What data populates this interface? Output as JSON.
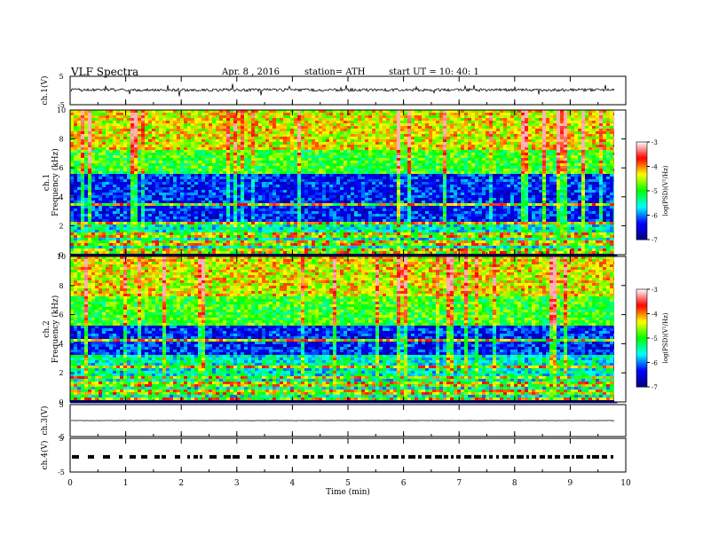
{
  "header": {
    "title": "VLF  Spectra",
    "date": "Apr. 8  , 2016",
    "station": "station= ATH",
    "start": "start  UT  =    10: 40: 1"
  },
  "chart_data": {
    "type": "heatmap",
    "xlabel": "Time  (min)",
    "xlim": [
      0,
      10
    ],
    "xticks": [
      "0",
      "1",
      "2",
      "3",
      "4",
      "5",
      "6",
      "7",
      "8",
      "9",
      "10"
    ],
    "panels": [
      {
        "id": "ch1v",
        "kind": "line",
        "ylabel": "ch.1(V)",
        "ylim": [
          -5,
          5
        ],
        "yticks": [
          "5",
          "-5"
        ],
        "baseline": 0.2,
        "noise": 0.5
      },
      {
        "id": "ch1s",
        "kind": "spectrogram",
        "ylabel1": "ch.1",
        "ylabel2": "Frequency  (kHz)",
        "ylim": [
          0,
          10
        ],
        "yticks": [
          "0",
          "2",
          "4",
          "6",
          "8",
          "10"
        ],
        "quiet_band_khz": [
          2.2,
          5.6
        ],
        "strong_lines_khz": [
          0.2,
          0.45,
          0.75,
          1.05,
          1.35,
          1.6,
          2.3,
          3.5
        ]
      },
      {
        "id": "ch2s",
        "kind": "spectrogram",
        "ylabel1": "ch.2",
        "ylabel2": "Frequency  (kHz)",
        "ylim": [
          0,
          10
        ],
        "yticks": [
          "0",
          "2",
          "4",
          "6",
          "8",
          "10"
        ],
        "quiet_band_khz": [
          3.2,
          5.3
        ],
        "strong_lines_khz": [
          0.3,
          0.55,
          0.85,
          1.15,
          1.4,
          1.7,
          2.5,
          4.3
        ]
      },
      {
        "id": "ch3v",
        "kind": "line",
        "ylabel": "ch.3(V)",
        "ylim": [
          -5,
          5
        ],
        "yticks": [
          "5",
          "-5"
        ],
        "baseline": 0.0,
        "noise": 0.05
      },
      {
        "id": "ch4v",
        "kind": "pulses",
        "ylabel": "ch.4(V)",
        "ylim": [
          -5,
          5
        ],
        "yticks": [
          "5",
          "-5"
        ],
        "baseline": -0.5
      }
    ],
    "colorbar": {
      "label": "log(PSD)(V²/Hz)",
      "range": [
        -7,
        -3
      ],
      "ticks": [
        "-3",
        "-4",
        "-5",
        "-6",
        "-7"
      ],
      "colormap": [
        "#000080",
        "#0000ff",
        "#00ffff",
        "#00ff00",
        "#ffff00",
        "#ff0000",
        "#ffffff"
      ]
    }
  }
}
